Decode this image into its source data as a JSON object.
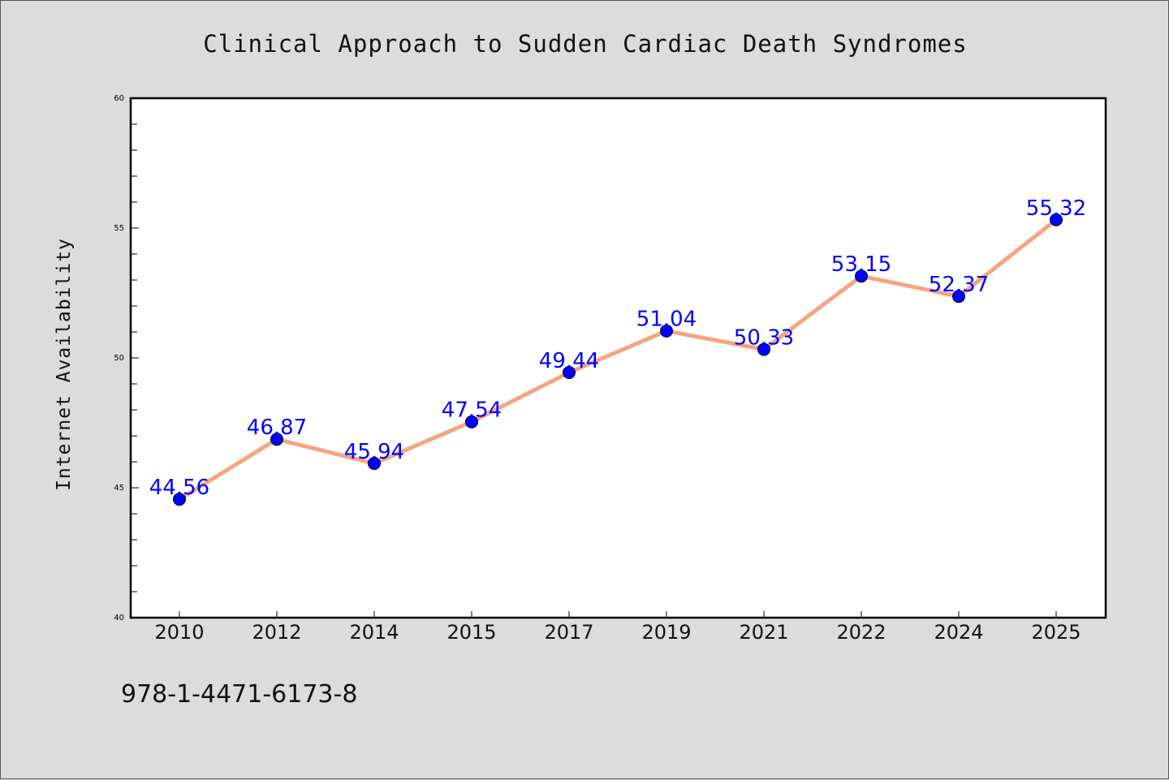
{
  "colors": {
    "background": "#dcdcdc",
    "plot_background": "#ffffff",
    "line": "#f4a582",
    "marker": "#0000ff",
    "data_label": "#0000ff",
    "text": "#111111"
  },
  "footer": {
    "code": "978-1-4471-6173-8"
  },
  "chart_data": {
    "type": "line",
    "title": "Clinical Approach to Sudden Cardiac Death Syndromes",
    "xlabel": "",
    "ylabel": "Internet Availability",
    "categories": [
      "2010",
      "2012",
      "2014",
      "2015",
      "2017",
      "2019",
      "2021",
      "2022",
      "2024",
      "2025"
    ],
    "series": [
      {
        "values": [
          44.56,
          46.87,
          45.94,
          47.54,
          49.44,
          51.04,
          50.33,
          53.15,
          52.37,
          55.32
        ],
        "data_labels": [
          "44.56",
          "46.87",
          "45.94",
          "47.54",
          "49.44",
          "51.04",
          "50.33",
          "53.15",
          "52.37",
          "55.32"
        ]
      }
    ],
    "ylim": [
      40,
      60
    ],
    "yticks": [
      "40",
      "45",
      "50",
      "55",
      "60"
    ],
    "ytick_values": [
      40,
      45,
      50,
      55,
      60
    ],
    "y_minor_step": 1,
    "grid": false,
    "legend": "none",
    "markers": "circle"
  }
}
